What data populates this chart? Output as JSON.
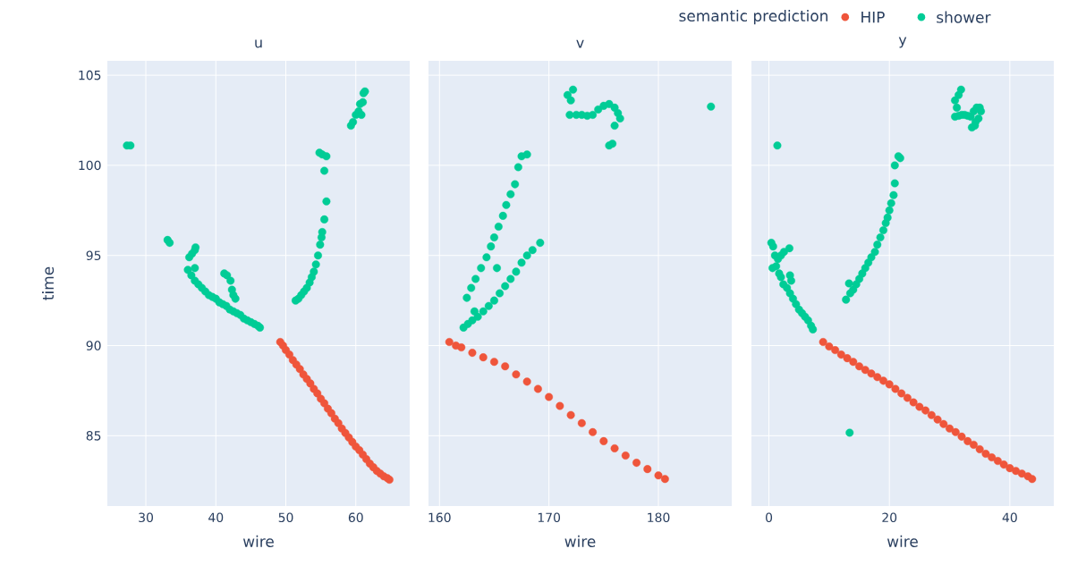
{
  "chart_data": [
    {
      "type": "scatter",
      "title": "u",
      "xlabel": "wire",
      "ylabel": "time",
      "xlim": [
        24.5,
        67.7
      ],
      "ylim": [
        81.1,
        105.8
      ],
      "xticks": [
        30,
        40,
        50,
        60
      ],
      "yticks": [
        85,
        90,
        95,
        100,
        105
      ],
      "grid": true,
      "marker": "circle",
      "series": [
        {
          "color": "#ef553b",
          "x": [
            49.2,
            49.6,
            50,
            50.5,
            51,
            51.5,
            52,
            52.5,
            53,
            53.5,
            54,
            54.5,
            55,
            55.5,
            56,
            56.5,
            57,
            57.5,
            58,
            58.5,
            59,
            59.5,
            60,
            60.5,
            61,
            61.5,
            62,
            62.5,
            63,
            63.5,
            64,
            64.5,
            64.8
          ],
          "values": [
            90.2,
            90.0,
            89.75,
            89.5,
            89.2,
            88.95,
            88.7,
            88.4,
            88.15,
            87.9,
            87.6,
            87.35,
            87.05,
            86.8,
            86.5,
            86.25,
            85.95,
            85.7,
            85.4,
            85.15,
            84.9,
            84.65,
            84.4,
            84.2,
            83.95,
            83.7,
            83.45,
            83.25,
            83.05,
            82.9,
            82.75,
            82.65,
            82.56
          ]
        },
        {
          "color": "#00cc96",
          "x": [
            27.3,
            27.8,
            33.1,
            33.4,
            36,
            36.5,
            37,
            37.5,
            38,
            38.5,
            39,
            39.5,
            40,
            40.5,
            41,
            41.5,
            42,
            42.5,
            43,
            43.5,
            44,
            44.5,
            45,
            45.5,
            46,
            46.3,
            36.2,
            36.6,
            37,
            37.1,
            37,
            41.2,
            41.6,
            42.1,
            42.3,
            42.5,
            42.8,
            51.4,
            51.8,
            52.2,
            52.6,
            53,
            53.4,
            53.7,
            54,
            54.3,
            54.6,
            54.9,
            55.1,
            55.2,
            55.5,
            55.8,
            55.5,
            55.8,
            55.2,
            54.8,
            59.3,
            59.6,
            60,
            60.4,
            60.8,
            60.6,
            61,
            61.1,
            61.3
          ],
          "values": [
            101.1,
            101.1,
            95.86,
            95.7,
            94.2,
            93.9,
            93.6,
            93.4,
            93.2,
            93.0,
            92.8,
            92.7,
            92.6,
            92.4,
            92.3,
            92.2,
            92.0,
            91.9,
            91.8,
            91.7,
            91.5,
            91.4,
            91.3,
            91.2,
            91.1,
            91.0,
            94.9,
            95.1,
            95.3,
            95.45,
            94.3,
            94.0,
            93.9,
            93.6,
            93.1,
            92.8,
            92.6,
            92.5,
            92.6,
            92.8,
            93.0,
            93.2,
            93.5,
            93.8,
            94.1,
            94.5,
            95.0,
            95.6,
            96.0,
            96.3,
            97.0,
            98.0,
            99.7,
            100.5,
            100.6,
            100.7,
            102.2,
            102.4,
            102.8,
            103.0,
            102.8,
            103.4,
            103.5,
            104.0,
            104.1
          ]
        }
      ]
    },
    {
      "type": "scatter",
      "title": "v",
      "xlabel": "wire",
      "xlim": [
        159.0,
        186.7
      ],
      "ylim": [
        81.1,
        105.8
      ],
      "xticks": [
        160,
        170,
        180
      ],
      "yticks": [
        85,
        90,
        95,
        100,
        105
      ],
      "grid": true,
      "marker": "circle",
      "tick_labels": "x",
      "series": [
        {
          "color": "#ef553b",
          "x": [
            160.9,
            161.5,
            162,
            163,
            164,
            165,
            166,
            167,
            168,
            169,
            170,
            171,
            172,
            173,
            174,
            175,
            176,
            177,
            178,
            179,
            180,
            180.6
          ],
          "values": [
            90.2,
            90.0,
            89.9,
            89.6,
            89.35,
            89.1,
            88.85,
            88.4,
            88.0,
            87.6,
            87.15,
            86.65,
            86.15,
            85.7,
            85.2,
            84.7,
            84.3,
            83.9,
            83.5,
            83.15,
            82.8,
            82.6
          ]
        },
        {
          "color": "#00cc96",
          "x": [
            162.2,
            162.6,
            163,
            163.5,
            164,
            164.5,
            165,
            165.5,
            166,
            166.5,
            167,
            167.5,
            168,
            168.5,
            169.2,
            163.2,
            162.5,
            162.9,
            163.3,
            163.8,
            164.3,
            164.7,
            165,
            165.4,
            165.8,
            166.1,
            166.5,
            166.9,
            167.2,
            167.5,
            168,
            165.25,
            172.2,
            171.7,
            172,
            171.9,
            172.5,
            173,
            173.5,
            174,
            174.5,
            175,
            175.5,
            176,
            176.3,
            176.5,
            176,
            175.8,
            175.5,
            184.8
          ],
          "values": [
            91.0,
            91.2,
            91.4,
            91.6,
            91.9,
            92.2,
            92.5,
            92.9,
            93.3,
            93.7,
            94.1,
            94.6,
            95.0,
            95.3,
            95.7,
            91.9,
            92.65,
            93.2,
            93.7,
            94.3,
            94.9,
            95.5,
            96.0,
            96.6,
            97.2,
            97.8,
            98.4,
            98.95,
            99.9,
            100.5,
            100.6,
            94.3,
            104.2,
            103.9,
            103.6,
            102.8,
            102.8,
            102.8,
            102.75,
            102.8,
            103.1,
            103.3,
            103.4,
            103.2,
            102.9,
            102.6,
            102.2,
            101.2,
            101.1,
            103.26
          ]
        }
      ]
    },
    {
      "type": "scatter",
      "title": "y",
      "xlabel": "wire",
      "xlim": [
        -2.9,
        47.3
      ],
      "ylim": [
        81.1,
        105.8
      ],
      "xticks": [
        0,
        20,
        40
      ],
      "yticks": [
        85,
        90,
        95,
        100,
        105
      ],
      "grid": true,
      "marker": "circle",
      "tick_labels": "x",
      "legend": "top",
      "legend_title": "semantic prediction",
      "series": [
        {
          "name": "HIP",
          "color": "#ef553b",
          "x": [
            9,
            10,
            11,
            12,
            13,
            14,
            15,
            16,
            17,
            18,
            19,
            20,
            21,
            22,
            23,
            24,
            25,
            26,
            27,
            28,
            29,
            30,
            31,
            32,
            33,
            34,
            35,
            36,
            37,
            38,
            39,
            40,
            41,
            42,
            43,
            43.7
          ],
          "values": [
            90.2,
            89.95,
            89.75,
            89.5,
            89.3,
            89.1,
            88.85,
            88.65,
            88.45,
            88.25,
            88.05,
            87.85,
            87.6,
            87.35,
            87.1,
            86.85,
            86.6,
            86.4,
            86.15,
            85.9,
            85.65,
            85.4,
            85.2,
            84.95,
            84.7,
            84.5,
            84.25,
            84.0,
            83.8,
            83.6,
            83.4,
            83.2,
            83.05,
            82.9,
            82.75,
            82.6
          ]
        },
        {
          "name": "shower",
          "color": "#00cc96",
          "x": [
            1.4,
            13.4,
            0.4,
            0.7,
            1,
            1.5,
            2,
            2.5,
            3.4,
            0.6,
            1.2,
            1.7,
            2,
            2.4,
            3,
            3.5,
            3.7,
            3.5,
            4,
            4.5,
            5,
            5.5,
            6,
            6.5,
            7,
            7.3,
            12.8,
            13.3,
            13.5,
            14,
            14.5,
            15,
            15.5,
            16,
            16.5,
            17,
            17.6,
            18,
            18.5,
            19,
            19.4,
            19.7,
            20,
            20.3,
            20.7,
            20.9,
            20.9,
            21.5,
            21.8,
            31.9,
            31.5,
            30.9,
            31.2,
            30.9,
            31.5,
            32,
            32.5,
            33,
            33.5,
            34,
            34.5,
            35,
            35.2,
            34.8,
            34.3,
            33.7,
            34.2
          ],
          "values": [
            101.1,
            85.17,
            95.7,
            95.5,
            95.0,
            94.8,
            95.0,
            95.2,
            95.4,
            94.3,
            94.4,
            94.0,
            93.8,
            93.4,
            93.2,
            93.9,
            93.6,
            92.9,
            92.6,
            92.3,
            92.0,
            91.8,
            91.6,
            91.4,
            91.1,
            90.9,
            92.55,
            93.45,
            92.9,
            93.1,
            93.4,
            93.7,
            94.0,
            94.3,
            94.6,
            94.9,
            95.2,
            95.6,
            96.0,
            96.4,
            96.8,
            97.1,
            97.5,
            97.9,
            98.35,
            99.0,
            100.0,
            100.5,
            100.4,
            104.2,
            103.9,
            103.6,
            103.2,
            102.7,
            102.75,
            102.8,
            102.8,
            102.75,
            102.7,
            103.0,
            103.2,
            103.2,
            103.0,
            102.6,
            102.4,
            102.1,
            102.2
          ]
        }
      ]
    }
  ]
}
